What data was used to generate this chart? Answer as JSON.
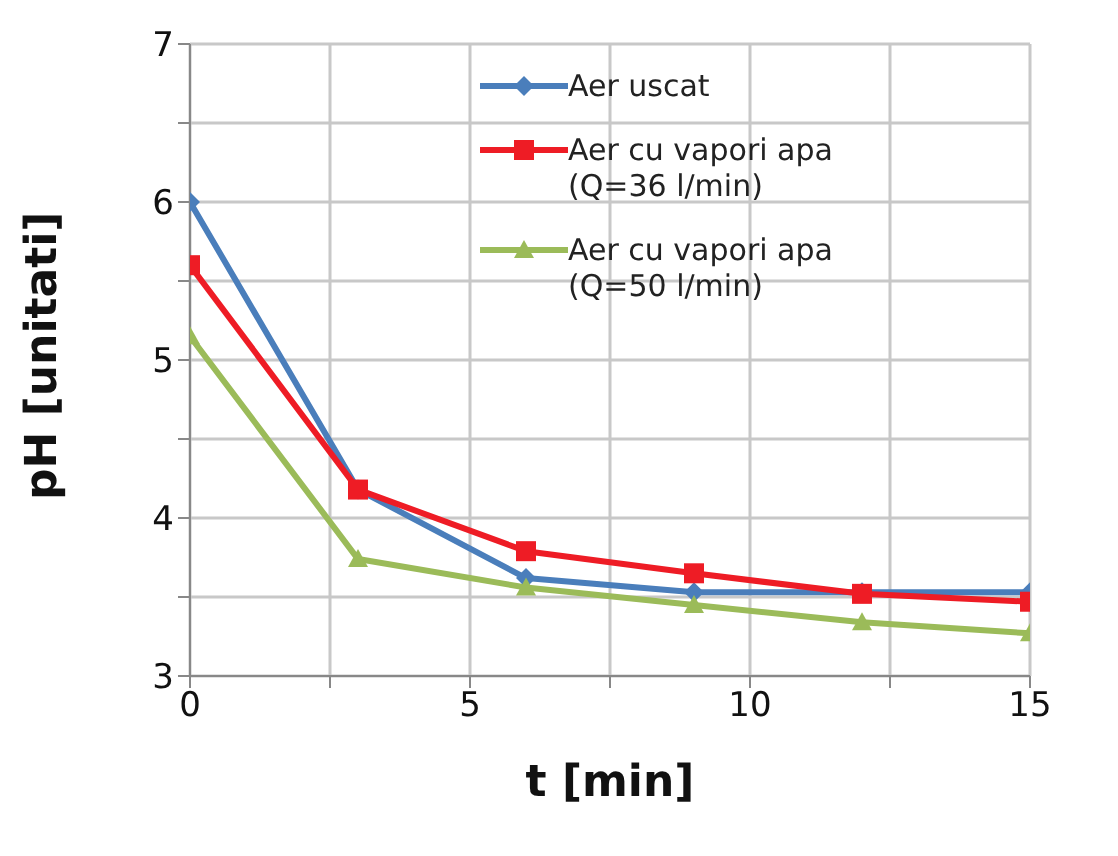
{
  "chart_data": {
    "type": "line",
    "xlabel": "t [min]",
    "ylabel": "pH [unitati]",
    "x": [
      0,
      3,
      6,
      9,
      12,
      15
    ],
    "xlim": [
      0,
      15
    ],
    "xticks": [
      0,
      {
        "value": 2.5,
        "label": null
      },
      5,
      {
        "value": 7.5,
        "label": null
      },
      10,
      {
        "value": 12.5,
        "label": null
      },
      15
    ],
    "ylim": [
      3,
      7
    ],
    "yticks": [
      3,
      {
        "value": 3.5,
        "label": null
      },
      4,
      {
        "value": 4.5,
        "label": null
      },
      5,
      {
        "value": 5.5,
        "label": null
      },
      6,
      {
        "value": 6.5,
        "label": null
      },
      7
    ],
    "grid": true,
    "legend": "top right",
    "line_style": "solid",
    "series": [
      {
        "name": "Aer uscat",
        "color": "#4a7ebb",
        "marker": "diamond",
        "values": [
          6.0,
          4.18,
          3.62,
          3.53,
          3.53,
          3.53
        ]
      },
      {
        "name": "Aer cu vapori apa (Q=36 l/min)",
        "color": "#ee1c25",
        "marker": "square",
        "values": [
          5.6,
          4.18,
          3.79,
          3.65,
          3.52,
          3.47
        ]
      },
      {
        "name": "Aer cu vapori apa (Q=50 l/min)",
        "color": "#9bbb59",
        "marker": "triangle",
        "values": [
          5.15,
          3.74,
          3.56,
          3.45,
          3.34,
          3.27
        ]
      }
    ]
  }
}
